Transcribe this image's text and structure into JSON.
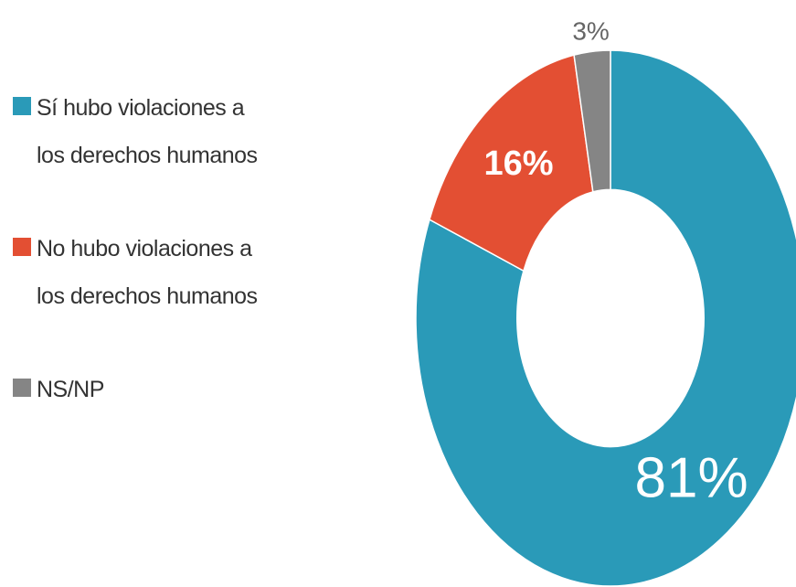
{
  "chart_data": {
    "type": "pie",
    "donut": true,
    "categories": [
      "Sí hubo violaciones a los derechos humanos",
      "No hubo violaciones a los derechos humanos",
      "NS/NP"
    ],
    "values": [
      81,
      16,
      3
    ],
    "value_labels": [
      "81%",
      "16%",
      "3%"
    ],
    "colors": [
      "#2a9ab8",
      "#e34f33",
      "#858585"
    ]
  }
}
